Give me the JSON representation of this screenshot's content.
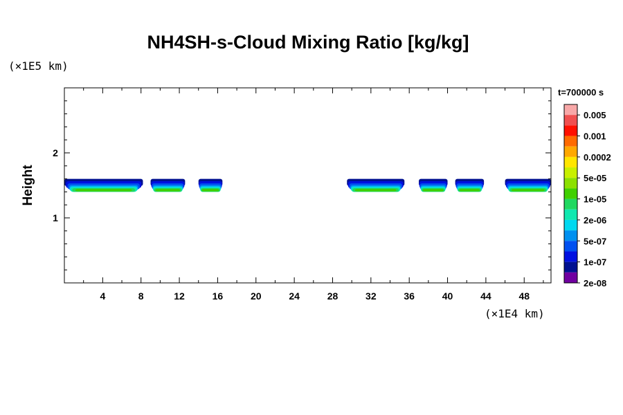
{
  "chart_data": {
    "type": "heatmap",
    "title": "NH4SH-s-Cloud Mixing Ratio [kg/kg]",
    "xlabel": "",
    "ylabel": "Height",
    "x_unit": "(×1E4 km)",
    "y_unit": "(×1E5 km)",
    "time_label": "t=700000 s",
    "xlim": [
      0,
      50.8
    ],
    "ylim": [
      0,
      3
    ],
    "x_ticks": [
      "4",
      "8",
      "12",
      "16",
      "20",
      "24",
      "28",
      "32",
      "36",
      "40",
      "44",
      "48"
    ],
    "y_ticks": [
      "1",
      "2"
    ],
    "colorbar": {
      "labels": [
        "0.005",
        "0.001",
        "0.0002",
        "5e-05",
        "1e-05",
        "2e-06",
        "5e-07",
        "1e-07",
        "2e-08"
      ],
      "colors": [
        "#f8a8a8",
        "#f05050",
        "#ff1000",
        "#ff6a00",
        "#ffa800",
        "#ffe600",
        "#c8f000",
        "#8ce000",
        "#40d000",
        "#20d860",
        "#10e8b0",
        "#00d8f0",
        "#0090f0",
        "#0050f0",
        "#0010e0",
        "#001090",
        "#7000a0"
      ]
    },
    "cloud_layer": {
      "height_range": [
        1.4,
        1.6
      ],
      "segments": [
        {
          "x_start": 0.0,
          "x_end": 8.2,
          "max_level": "1e-05"
        },
        {
          "x_start": 9.0,
          "x_end": 12.6,
          "max_level": "1e-05"
        },
        {
          "x_start": 14.0,
          "x_end": 16.5,
          "max_level": "1e-05"
        },
        {
          "x_start": 29.5,
          "x_end": 35.5,
          "max_level": "1e-05"
        },
        {
          "x_start": 37.0,
          "x_end": 40.0,
          "max_level": "1e-05"
        },
        {
          "x_start": 40.8,
          "x_end": 43.8,
          "max_level": "1e-05"
        },
        {
          "x_start": 46.0,
          "x_end": 50.8,
          "max_level": "1e-05"
        }
      ]
    }
  }
}
